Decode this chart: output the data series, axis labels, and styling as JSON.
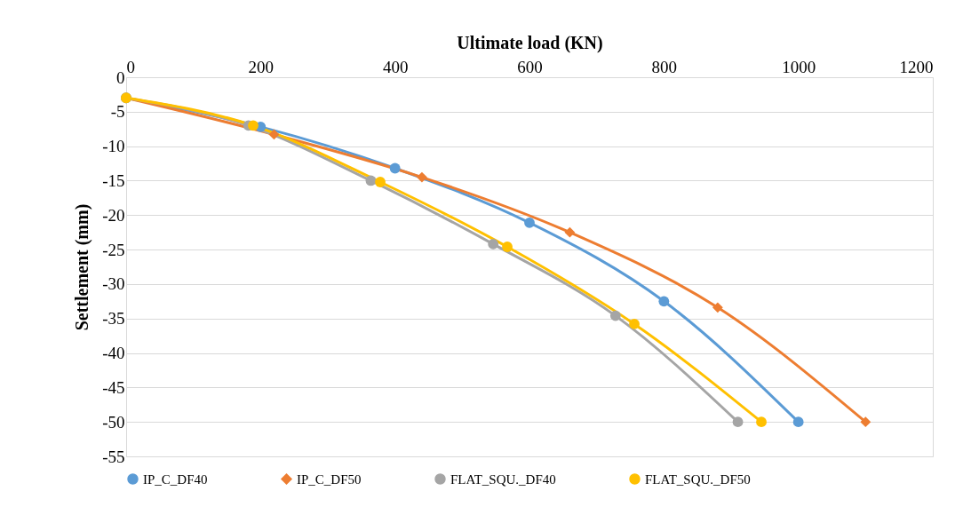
{
  "chart_data": {
    "type": "line",
    "xlabel": "Ultimate load (KN)",
    "ylabel": "Settlement (mm)",
    "xlim": [
      0,
      1200
    ],
    "xticks": [
      0,
      200,
      400,
      600,
      800,
      1000,
      1200
    ],
    "ylim": [
      -55,
      0
    ],
    "yticks": [
      0,
      -5,
      -10,
      -15,
      -20,
      -25,
      -30,
      -35,
      -40,
      -45,
      -50,
      -55
    ],
    "grid": "y",
    "legend": "bottom",
    "line_style": "solid",
    "series": [
      {
        "name": "IP_C_DF40",
        "color": "#5b9bd5",
        "marker": "circle",
        "x": [
          0,
          200,
          400,
          600,
          800,
          1000
        ],
        "values": [
          -3,
          -7.2,
          -13.2,
          -21.1,
          -32.5,
          -50
        ]
      },
      {
        "name": "IP_C_DF50",
        "color": "#ed7d31",
        "marker": "diamond",
        "x": [
          0,
          220,
          440,
          660,
          880,
          1100
        ],
        "values": [
          -3,
          -8.3,
          -14.5,
          -22.5,
          -33.4,
          -50
        ]
      },
      {
        "name": "FLAT_SQU._DF40",
        "color": "#a5a5a5",
        "marker": "circle",
        "x": [
          0,
          182,
          364,
          546,
          728,
          910
        ],
        "values": [
          -3,
          -7,
          -15,
          -24.2,
          -34.6,
          -50
        ]
      },
      {
        "name": "FLAT_SQU._DF50",
        "color": "#ffc000",
        "marker": "circle",
        "x": [
          0,
          189,
          378,
          567,
          756,
          945
        ],
        "values": [
          -3,
          -7,
          -15.2,
          -24.6,
          -35.8,
          -50
        ]
      }
    ]
  }
}
